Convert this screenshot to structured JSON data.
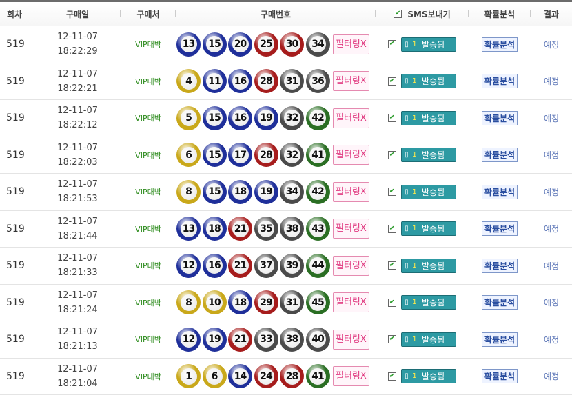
{
  "header": {
    "round": "회차",
    "date": "구매일",
    "shop": "구매처",
    "numbers": "구매번호",
    "sms": "SMS보내기",
    "analysis": "확률분석",
    "result": "결과"
  },
  "colors": {
    "yellow": "#c9a81a",
    "blue": "#1f2f9a",
    "red": "#a61c1c",
    "gray": "#4a4a4a",
    "green": "#2a6e23"
  },
  "labels": {
    "filter": "필터링X",
    "sent": "발송됨",
    "sent_count": "1",
    "analysis": "확률분석",
    "checkmark": "✔"
  },
  "rows": [
    {
      "round": "519",
      "date": "12-11-07",
      "time": "18:22:29",
      "shop": "VIP대박",
      "numbers": [
        13,
        15,
        20,
        25,
        30,
        34
      ],
      "result": "예정"
    },
    {
      "round": "519",
      "date": "12-11-07",
      "time": "18:22:21",
      "shop": "VIP대박",
      "numbers": [
        4,
        11,
        16,
        28,
        31,
        36
      ],
      "result": "예정"
    },
    {
      "round": "519",
      "date": "12-11-07",
      "time": "18:22:12",
      "shop": "VIP대박",
      "numbers": [
        5,
        15,
        16,
        19,
        32,
        42
      ],
      "result": "예정"
    },
    {
      "round": "519",
      "date": "12-11-07",
      "time": "18:22:03",
      "shop": "VIP대박",
      "numbers": [
        6,
        15,
        17,
        28,
        32,
        41
      ],
      "result": "예정"
    },
    {
      "round": "519",
      "date": "12-11-07",
      "time": "18:21:53",
      "shop": "VIP대박",
      "numbers": [
        8,
        15,
        18,
        19,
        34,
        42
      ],
      "result": "예정"
    },
    {
      "round": "519",
      "date": "12-11-07",
      "time": "18:21:44",
      "shop": "VIP대박",
      "numbers": [
        13,
        18,
        21,
        35,
        38,
        43
      ],
      "result": "예정"
    },
    {
      "round": "519",
      "date": "12-11-07",
      "time": "18:21:33",
      "shop": "VIP대박",
      "numbers": [
        12,
        16,
        21,
        37,
        39,
        44
      ],
      "result": "예정"
    },
    {
      "round": "519",
      "date": "12-11-07",
      "time": "18:21:24",
      "shop": "VIP대박",
      "numbers": [
        8,
        10,
        18,
        29,
        31,
        45
      ],
      "result": "예정"
    },
    {
      "round": "519",
      "date": "12-11-07",
      "time": "18:21:13",
      "shop": "VIP대박",
      "numbers": [
        12,
        19,
        21,
        33,
        38,
        40
      ],
      "result": "예정"
    },
    {
      "round": "519",
      "date": "12-11-07",
      "time": "18:21:04",
      "shop": "VIP대박",
      "numbers": [
        1,
        6,
        14,
        24,
        28,
        41
      ],
      "result": "예정"
    }
  ]
}
